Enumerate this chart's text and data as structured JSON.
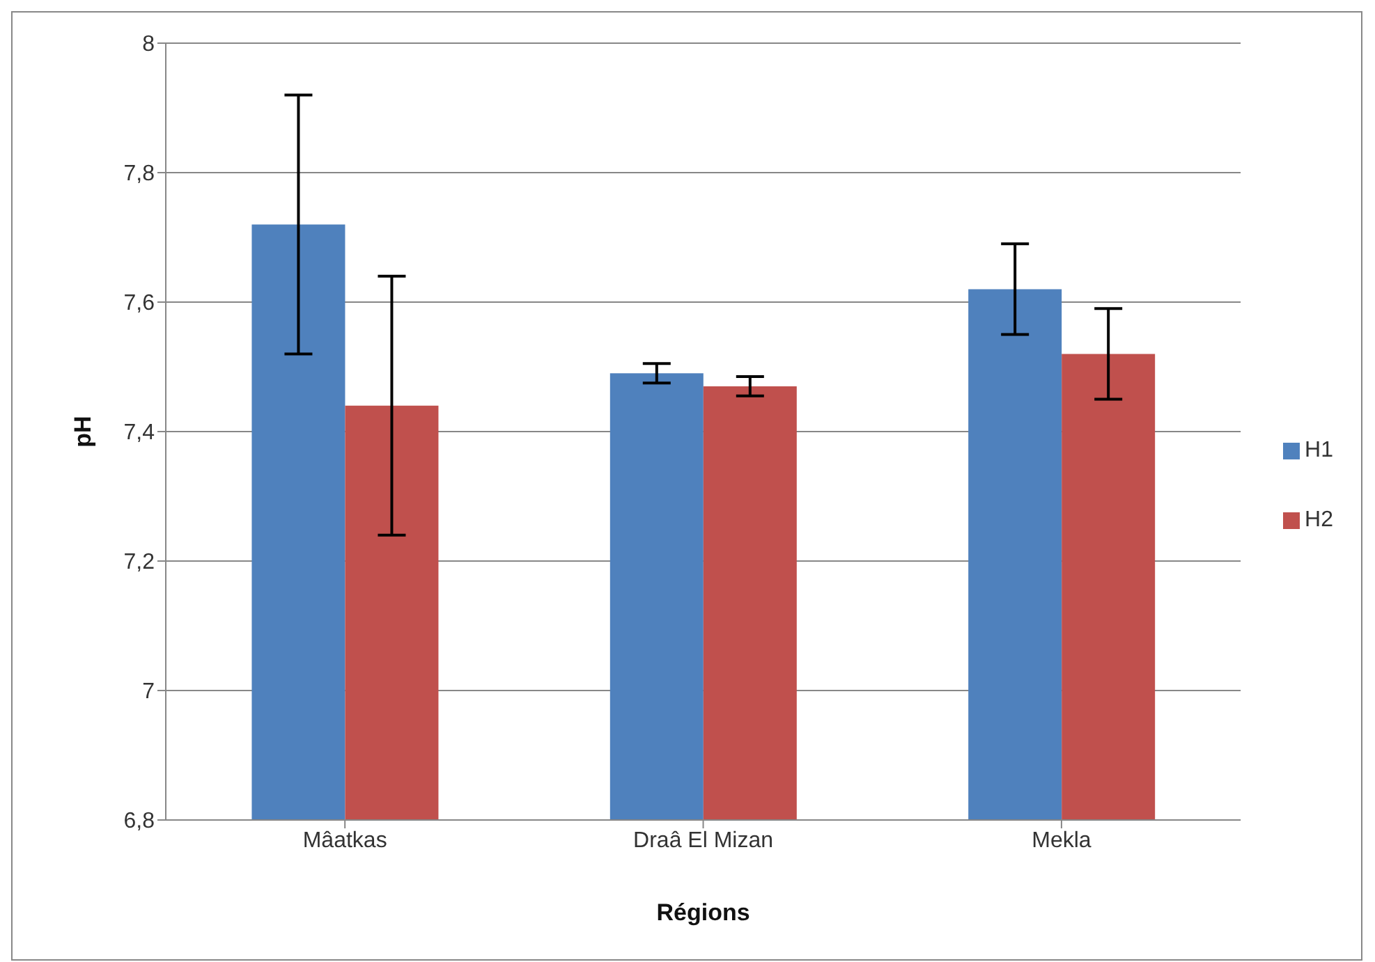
{
  "chart_data": {
    "type": "bar",
    "xlabel": "Régions",
    "ylabel": "pH",
    "categories": [
      "Mâatkas",
      "Draâ El Mizan",
      "Mekla"
    ],
    "series": [
      {
        "name": "H1",
        "color": "#4f81bd",
        "values": [
          7.72,
          7.49,
          7.62
        ],
        "errors": [
          0.2,
          0.015,
          0.07
        ]
      },
      {
        "name": "H2",
        "color": "#c0504d",
        "values": [
          7.44,
          7.47,
          7.52
        ],
        "errors": [
          0.2,
          0.015,
          0.07
        ]
      }
    ],
    "ylim": [
      6.8,
      8
    ],
    "yticks": [
      {
        "value": 6.8,
        "label": "6,8"
      },
      {
        "value": 7,
        "label": "7"
      },
      {
        "value": 7.2,
        "label": "7,2"
      },
      {
        "value": 7.4,
        "label": "7,4"
      },
      {
        "value": 7.6,
        "label": "7,6"
      },
      {
        "value": 7.8,
        "label": "7,8"
      },
      {
        "value": 8,
        "label": "8"
      }
    ],
    "grid": "y",
    "legend": "right"
  }
}
